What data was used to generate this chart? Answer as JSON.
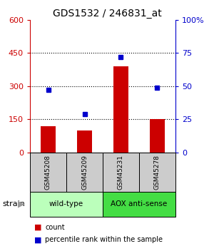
{
  "title": "GDS1532 / 246831_at",
  "samples": [
    "GSM45208",
    "GSM45209",
    "GSM45231",
    "GSM45278"
  ],
  "counts": [
    120,
    100,
    390,
    150
  ],
  "percentiles": [
    47,
    29,
    72,
    49
  ],
  "ylim_left": [
    0,
    600
  ],
  "ylim_right": [
    0,
    100
  ],
  "yticks_left": [
    0,
    150,
    300,
    450,
    600
  ],
  "yticks_right": [
    0,
    25,
    50,
    75,
    100
  ],
  "ytick_labels_right": [
    "0",
    "25",
    "50",
    "75",
    "100%"
  ],
  "bar_color": "#cc0000",
  "dot_color": "#0000cc",
  "left_tick_color": "#cc0000",
  "right_tick_color": "#0000cc",
  "groups": [
    {
      "label": "wild-type",
      "samples": [
        0,
        1
      ],
      "color": "#bbffbb"
    },
    {
      "label": "AOX anti-sense",
      "samples": [
        2,
        3
      ],
      "color": "#44dd44"
    }
  ],
  "strain_label": "strain",
  "sample_box_color": "#cccccc",
  "bg_color": "#ffffff"
}
